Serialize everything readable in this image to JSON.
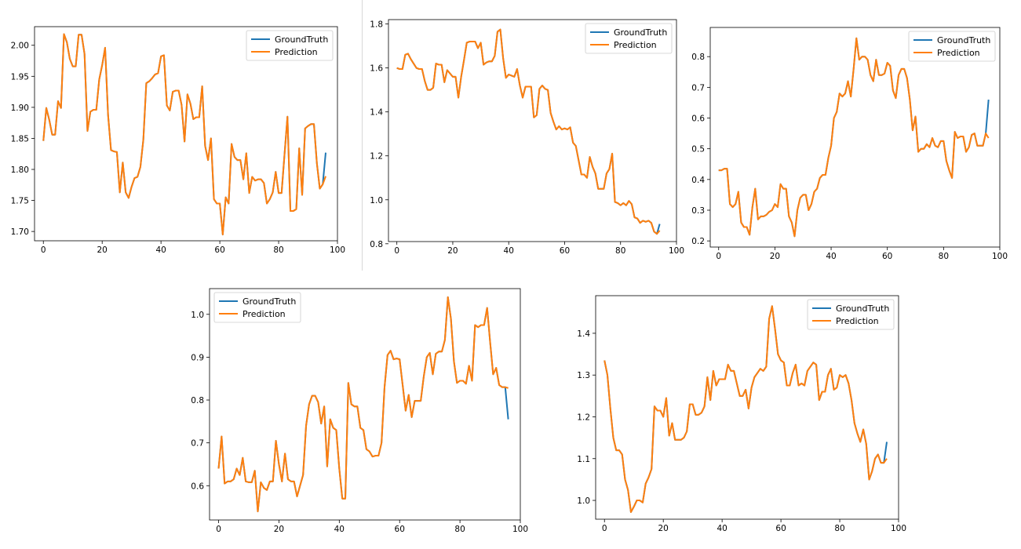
{
  "colors": {
    "ground_truth": "#1f77b4",
    "prediction": "#ff7f0e",
    "axis": "#000000"
  },
  "chart_data": [
    {
      "type": "line",
      "legend": [
        "GroundTruth",
        "Prediction"
      ],
      "legend_position": "top-right",
      "xlim": [
        -3,
        100
      ],
      "ylim": [
        1.685,
        2.03
      ],
      "xticks": [
        0,
        20,
        40,
        60,
        80,
        100
      ],
      "yticks": [
        1.7,
        1.75,
        1.8,
        1.85,
        1.9,
        1.95,
        2.0
      ],
      "ytick_labels": [
        "1.70",
        "1.75",
        "1.80",
        "1.85",
        "1.90",
        "1.95",
        "2.00"
      ],
      "prediction": [
        1.846,
        1.899,
        1.88,
        1.856,
        1.856,
        1.91,
        1.899,
        2.018,
        2.005,
        1.978,
        1.966,
        1.966,
        2.017,
        2.017,
        1.986,
        1.862,
        1.893,
        1.896,
        1.896,
        1.945,
        1.968,
        1.996,
        1.888,
        1.831,
        1.829,
        1.828,
        1.763,
        1.811,
        1.763,
        1.754,
        1.772,
        1.786,
        1.788,
        1.804,
        1.848,
        1.939,
        1.942,
        1.947,
        1.953,
        1.955,
        1.982,
        1.984,
        1.903,
        1.895,
        1.925,
        1.927,
        1.927,
        1.904,
        1.845,
        1.921,
        1.906,
        1.881,
        1.884,
        1.884,
        1.934,
        1.838,
        1.815,
        1.85,
        1.752,
        1.745,
        1.745,
        1.695,
        1.755,
        1.745,
        1.841,
        1.82,
        1.815,
        1.815,
        1.784,
        1.826,
        1.762,
        1.788,
        1.782,
        1.784,
        1.784,
        1.778,
        1.745,
        1.752,
        1.763,
        1.796,
        1.762,
        1.762,
        1.824,
        1.885,
        1.733,
        1.733,
        1.736,
        1.834,
        1.759,
        1.866,
        1.87,
        1.873,
        1.873,
        1.81,
        1.769,
        1.776,
        1.789
      ],
      "ground_truth": [
        1.846,
        1.899,
        1.88,
        1.856,
        1.856,
        1.91,
        1.899,
        2.018,
        2.005,
        1.978,
        1.966,
        1.966,
        2.017,
        2.017,
        1.986,
        1.862,
        1.893,
        1.896,
        1.896,
        1.945,
        1.968,
        1.996,
        1.888,
        1.831,
        1.829,
        1.828,
        1.763,
        1.811,
        1.763,
        1.754,
        1.772,
        1.786,
        1.788,
        1.804,
        1.848,
        1.939,
        1.942,
        1.947,
        1.953,
        1.955,
        1.982,
        1.984,
        1.903,
        1.895,
        1.925,
        1.927,
        1.927,
        1.904,
        1.845,
        1.921,
        1.906,
        1.881,
        1.884,
        1.884,
        1.934,
        1.838,
        1.815,
        1.85,
        1.752,
        1.745,
        1.745,
        1.695,
        1.755,
        1.745,
        1.841,
        1.82,
        1.815,
        1.815,
        1.784,
        1.826,
        1.762,
        1.788,
        1.782,
        1.784,
        1.784,
        1.778,
        1.745,
        1.752,
        1.763,
        1.796,
        1.762,
        1.762,
        1.824,
        1.885,
        1.733,
        1.733,
        1.736,
        1.834,
        1.759,
        1.866,
        1.87,
        1.873,
        1.873,
        1.81,
        1.769,
        1.776,
        1.827
      ]
    },
    {
      "type": "line",
      "legend": [
        "GroundTruth",
        "Prediction"
      ],
      "legend_position": "top-right",
      "xlim": [
        -3,
        100
      ],
      "ylim": [
        0.81,
        1.82
      ],
      "xticks": [
        0,
        20,
        40,
        60,
        80,
        100
      ],
      "yticks": [
        0.8,
        1.0,
        1.2,
        1.4,
        1.6,
        1.8
      ],
      "ytick_labels": [
        "0.8",
        "1.0",
        "1.2",
        "1.4",
        "1.6",
        "1.8"
      ],
      "prediction": [
        1.6,
        1.595,
        1.595,
        1.66,
        1.665,
        1.64,
        1.62,
        1.6,
        1.595,
        1.595,
        1.54,
        1.5,
        1.5,
        1.51,
        1.62,
        1.615,
        1.615,
        1.535,
        1.59,
        1.575,
        1.56,
        1.56,
        1.465,
        1.56,
        1.635,
        1.715,
        1.72,
        1.72,
        1.72,
        1.69,
        1.715,
        1.615,
        1.625,
        1.63,
        1.63,
        1.655,
        1.765,
        1.775,
        1.645,
        1.555,
        1.57,
        1.565,
        1.56,
        1.595,
        1.52,
        1.465,
        1.515,
        1.515,
        1.515,
        1.375,
        1.385,
        1.505,
        1.52,
        1.505,
        1.5,
        1.395,
        1.355,
        1.32,
        1.335,
        1.32,
        1.325,
        1.32,
        1.33,
        1.26,
        1.245,
        1.18,
        1.115,
        1.115,
        1.1,
        1.195,
        1.15,
        1.12,
        1.05,
        1.05,
        1.05,
        1.12,
        1.14,
        1.21,
        0.99,
        0.985,
        0.975,
        0.985,
        0.975,
        0.995,
        0.98,
        0.92,
        0.915,
        0.895,
        0.905,
        0.9,
        0.905,
        0.895,
        0.855,
        0.845,
        0.86
      ],
      "ground_truth": [
        1.6,
        1.595,
        1.595,
        1.66,
        1.665,
        1.64,
        1.62,
        1.6,
        1.595,
        1.595,
        1.54,
        1.5,
        1.5,
        1.51,
        1.62,
        1.615,
        1.615,
        1.535,
        1.59,
        1.575,
        1.56,
        1.56,
        1.465,
        1.56,
        1.635,
        1.715,
        1.72,
        1.72,
        1.72,
        1.69,
        1.715,
        1.615,
        1.625,
        1.63,
        1.63,
        1.655,
        1.765,
        1.775,
        1.645,
        1.555,
        1.57,
        1.565,
        1.56,
        1.595,
        1.52,
        1.465,
        1.515,
        1.515,
        1.515,
        1.375,
        1.385,
        1.505,
        1.52,
        1.505,
        1.5,
        1.395,
        1.355,
        1.32,
        1.335,
        1.32,
        1.325,
        1.32,
        1.33,
        1.26,
        1.245,
        1.18,
        1.115,
        1.115,
        1.1,
        1.195,
        1.15,
        1.12,
        1.05,
        1.05,
        1.05,
        1.12,
        1.14,
        1.21,
        0.99,
        0.985,
        0.975,
        0.985,
        0.975,
        0.995,
        0.98,
        0.92,
        0.915,
        0.895,
        0.905,
        0.9,
        0.905,
        0.895,
        0.855,
        0.845,
        0.89
      ]
    },
    {
      "type": "line",
      "legend": [
        "GroundTruth",
        "Prediction"
      ],
      "legend_position": "top-right",
      "xlim": [
        -3,
        100
      ],
      "ylim": [
        0.18,
        0.895
      ],
      "xticks": [
        0,
        20,
        40,
        60,
        80,
        100
      ],
      "yticks": [
        0.2,
        0.3,
        0.4,
        0.5,
        0.6,
        0.7,
        0.8
      ],
      "ytick_labels": [
        "0.2",
        "0.3",
        "0.4",
        "0.5",
        "0.6",
        "0.7",
        "0.8"
      ],
      "prediction": [
        0.43,
        0.43,
        0.435,
        0.435,
        0.32,
        0.31,
        0.32,
        0.36,
        0.26,
        0.245,
        0.245,
        0.22,
        0.31,
        0.37,
        0.27,
        0.28,
        0.28,
        0.285,
        0.295,
        0.3,
        0.32,
        0.31,
        0.385,
        0.37,
        0.37,
        0.28,
        0.26,
        0.215,
        0.3,
        0.34,
        0.35,
        0.35,
        0.3,
        0.32,
        0.36,
        0.37,
        0.405,
        0.415,
        0.415,
        0.47,
        0.51,
        0.6,
        0.62,
        0.68,
        0.67,
        0.68,
        0.72,
        0.67,
        0.76,
        0.86,
        0.79,
        0.8,
        0.8,
        0.79,
        0.74,
        0.72,
        0.79,
        0.74,
        0.74,
        0.745,
        0.78,
        0.77,
        0.69,
        0.665,
        0.74,
        0.76,
        0.76,
        0.73,
        0.66,
        0.56,
        0.605,
        0.49,
        0.5,
        0.5,
        0.515,
        0.505,
        0.535,
        0.51,
        0.505,
        0.525,
        0.525,
        0.46,
        0.43,
        0.405,
        0.555,
        0.535,
        0.54,
        0.54,
        0.49,
        0.505,
        0.545,
        0.55,
        0.51,
        0.51,
        0.51,
        0.55,
        0.535
      ],
      "ground_truth": [
        0.43,
        0.43,
        0.435,
        0.435,
        0.32,
        0.31,
        0.32,
        0.36,
        0.26,
        0.245,
        0.245,
        0.22,
        0.31,
        0.37,
        0.27,
        0.28,
        0.28,
        0.285,
        0.295,
        0.3,
        0.32,
        0.31,
        0.385,
        0.37,
        0.37,
        0.28,
        0.26,
        0.215,
        0.3,
        0.34,
        0.35,
        0.35,
        0.3,
        0.32,
        0.36,
        0.37,
        0.405,
        0.415,
        0.415,
        0.47,
        0.51,
        0.6,
        0.62,
        0.68,
        0.67,
        0.68,
        0.72,
        0.67,
        0.76,
        0.86,
        0.79,
        0.8,
        0.8,
        0.79,
        0.74,
        0.72,
        0.79,
        0.74,
        0.74,
        0.745,
        0.78,
        0.77,
        0.69,
        0.665,
        0.74,
        0.76,
        0.76,
        0.73,
        0.66,
        0.56,
        0.605,
        0.49,
        0.5,
        0.5,
        0.515,
        0.505,
        0.535,
        0.51,
        0.505,
        0.525,
        0.525,
        0.46,
        0.43,
        0.405,
        0.555,
        0.535,
        0.54,
        0.54,
        0.49,
        0.505,
        0.545,
        0.55,
        0.51,
        0.51,
        0.51,
        0.55,
        0.66
      ]
    },
    {
      "type": "line",
      "legend": [
        "GroundTruth",
        "Prediction"
      ],
      "legend_position": "top-left",
      "xlim": [
        -3,
        100
      ],
      "ylim": [
        0.52,
        1.06
      ],
      "xticks": [
        0,
        20,
        40,
        60,
        80,
        100
      ],
      "yticks": [
        0.6,
        0.7,
        0.8,
        0.9,
        1.0
      ],
      "ytick_labels": [
        "0.6",
        "0.7",
        "0.8",
        "0.9",
        "1.0"
      ],
      "prediction": [
        0.64,
        0.715,
        0.605,
        0.61,
        0.61,
        0.615,
        0.64,
        0.625,
        0.665,
        0.61,
        0.608,
        0.608,
        0.635,
        0.54,
        0.608,
        0.595,
        0.59,
        0.61,
        0.61,
        0.705,
        0.65,
        0.61,
        0.675,
        0.615,
        0.61,
        0.61,
        0.575,
        0.6,
        0.625,
        0.74,
        0.79,
        0.81,
        0.81,
        0.795,
        0.745,
        0.785,
        0.645,
        0.755,
        0.735,
        0.73,
        0.64,
        0.57,
        0.57,
        0.84,
        0.79,
        0.785,
        0.785,
        0.735,
        0.73,
        0.685,
        0.68,
        0.668,
        0.67,
        0.67,
        0.7,
        0.83,
        0.905,
        0.915,
        0.895,
        0.897,
        0.895,
        0.835,
        0.775,
        0.812,
        0.76,
        0.798,
        0.798,
        0.798,
        0.855,
        0.9,
        0.91,
        0.86,
        0.908,
        0.913,
        0.913,
        0.94,
        1.04,
        0.99,
        0.89,
        0.84,
        0.845,
        0.845,
        0.838,
        0.88,
        0.845,
        0.975,
        0.97,
        0.975,
        0.975,
        1.015,
        0.935,
        0.86,
        0.875,
        0.835,
        0.83,
        0.83,
        0.828
      ],
      "ground_truth": [
        0.64,
        0.715,
        0.605,
        0.61,
        0.61,
        0.615,
        0.64,
        0.625,
        0.665,
        0.61,
        0.608,
        0.608,
        0.635,
        0.54,
        0.608,
        0.595,
        0.59,
        0.61,
        0.61,
        0.705,
        0.65,
        0.61,
        0.675,
        0.615,
        0.61,
        0.61,
        0.575,
        0.6,
        0.625,
        0.74,
        0.79,
        0.81,
        0.81,
        0.795,
        0.745,
        0.785,
        0.645,
        0.755,
        0.735,
        0.73,
        0.64,
        0.57,
        0.57,
        0.84,
        0.79,
        0.785,
        0.785,
        0.735,
        0.73,
        0.685,
        0.68,
        0.668,
        0.67,
        0.67,
        0.7,
        0.83,
        0.905,
        0.915,
        0.895,
        0.897,
        0.895,
        0.835,
        0.775,
        0.812,
        0.76,
        0.798,
        0.798,
        0.798,
        0.855,
        0.9,
        0.91,
        0.86,
        0.908,
        0.913,
        0.913,
        0.94,
        1.04,
        0.99,
        0.89,
        0.84,
        0.845,
        0.845,
        0.838,
        0.88,
        0.845,
        0.975,
        0.97,
        0.975,
        0.975,
        1.015,
        0.935,
        0.86,
        0.875,
        0.835,
        0.83,
        0.83,
        0.755
      ]
    },
    {
      "type": "line",
      "legend": [
        "GroundTruth",
        "Prediction"
      ],
      "legend_position": "top-right",
      "xlim": [
        -3,
        100
      ],
      "ylim": [
        0.955,
        1.49
      ],
      "xticks": [
        0,
        20,
        40,
        60,
        80,
        100
      ],
      "yticks": [
        1.0,
        1.1,
        1.2,
        1.3,
        1.4
      ],
      "ytick_labels": [
        "1.0",
        "1.1",
        "1.2",
        "1.3",
        "1.4"
      ],
      "prediction": [
        1.335,
        1.3,
        1.22,
        1.15,
        1.12,
        1.12,
        1.11,
        1.05,
        1.025,
        0.972,
        0.985,
        1.0,
        1.0,
        0.995,
        1.04,
        1.055,
        1.075,
        1.225,
        1.215,
        1.215,
        1.2,
        1.245,
        1.155,
        1.185,
        1.145,
        1.145,
        1.145,
        1.15,
        1.165,
        1.23,
        1.23,
        1.205,
        1.205,
        1.21,
        1.225,
        1.295,
        1.24,
        1.31,
        1.275,
        1.29,
        1.29,
        1.29,
        1.325,
        1.31,
        1.31,
        1.28,
        1.25,
        1.25,
        1.265,
        1.22,
        1.27,
        1.295,
        1.305,
        1.315,
        1.31,
        1.32,
        1.435,
        1.465,
        1.41,
        1.35,
        1.335,
        1.33,
        1.275,
        1.275,
        1.305,
        1.325,
        1.275,
        1.28,
        1.275,
        1.31,
        1.32,
        1.33,
        1.325,
        1.24,
        1.26,
        1.26,
        1.3,
        1.315,
        1.265,
        1.27,
        1.3,
        1.295,
        1.3,
        1.28,
        1.24,
        1.185,
        1.16,
        1.14,
        1.17,
        1.135,
        1.05,
        1.07,
        1.1,
        1.11,
        1.09,
        1.09,
        1.1
      ],
      "ground_truth": [
        1.335,
        1.3,
        1.22,
        1.15,
        1.12,
        1.12,
        1.11,
        1.05,
        1.025,
        0.972,
        0.985,
        1.0,
        1.0,
        0.995,
        1.04,
        1.055,
        1.075,
        1.225,
        1.215,
        1.215,
        1.2,
        1.245,
        1.155,
        1.185,
        1.145,
        1.145,
        1.145,
        1.15,
        1.165,
        1.23,
        1.23,
        1.205,
        1.205,
        1.21,
        1.225,
        1.295,
        1.24,
        1.31,
        1.275,
        1.29,
        1.29,
        1.29,
        1.325,
        1.31,
        1.31,
        1.28,
        1.25,
        1.25,
        1.265,
        1.22,
        1.27,
        1.295,
        1.305,
        1.315,
        1.31,
        1.32,
        1.435,
        1.465,
        1.41,
        1.35,
        1.335,
        1.33,
        1.275,
        1.275,
        1.305,
        1.325,
        1.275,
        1.28,
        1.275,
        1.31,
        1.32,
        1.33,
        1.325,
        1.24,
        1.26,
        1.26,
        1.3,
        1.315,
        1.265,
        1.27,
        1.3,
        1.295,
        1.3,
        1.28,
        1.24,
        1.185,
        1.16,
        1.14,
        1.17,
        1.135,
        1.05,
        1.07,
        1.1,
        1.11,
        1.09,
        1.09,
        1.14
      ]
    }
  ]
}
